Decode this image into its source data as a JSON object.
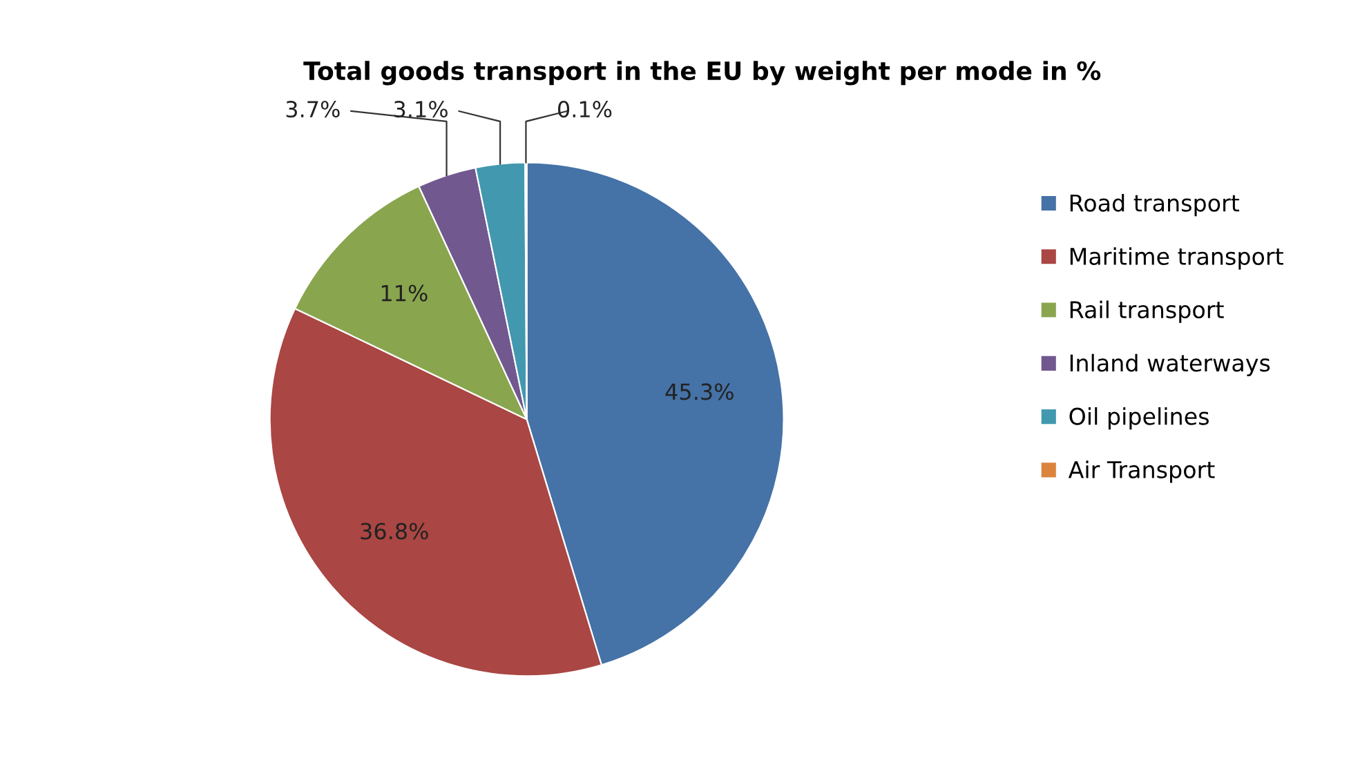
{
  "chart_data": {
    "type": "pie",
    "title": "Total goods transport in the EU by weight per mode in %",
    "categories": [
      "Road transport",
      "Maritime transport",
      "Rail transport",
      "Inland waterways",
      "Oil pipelines",
      "Air Transport"
    ],
    "values": [
      45.3,
      36.8,
      11,
      3.7,
      3.1,
      0.1
    ],
    "value_labels": [
      "45.3%",
      "36.8%",
      "11%",
      "3.7%",
      "3.1%",
      "0.1%"
    ],
    "colors": [
      "#4572a7",
      "#aa4643",
      "#89a54e",
      "#71588f",
      "#4198af",
      "#db843d"
    ],
    "legend": "right"
  }
}
